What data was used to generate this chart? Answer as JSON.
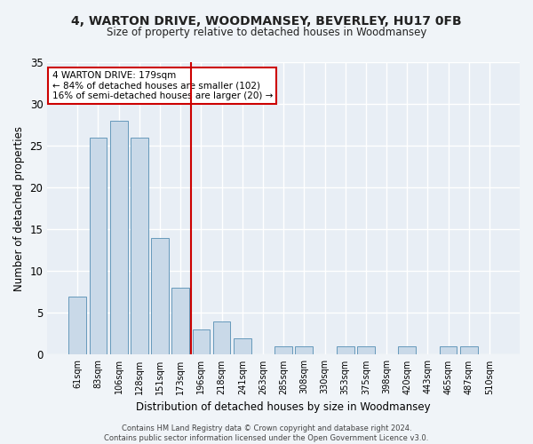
{
  "title1": "4, WARTON DRIVE, WOODMANSEY, BEVERLEY, HU17 0FB",
  "title2": "Size of property relative to detached houses in Woodmansey",
  "xlabel": "Distribution of detached houses by size in Woodmansey",
  "ylabel": "Number of detached properties",
  "categories": [
    "61sqm",
    "83sqm",
    "106sqm",
    "128sqm",
    "151sqm",
    "173sqm",
    "196sqm",
    "218sqm",
    "241sqm",
    "263sqm",
    "285sqm",
    "308sqm",
    "330sqm",
    "353sqm",
    "375sqm",
    "398sqm",
    "420sqm",
    "443sqm",
    "465sqm",
    "487sqm",
    "510sqm"
  ],
  "values": [
    7,
    26,
    28,
    26,
    14,
    8,
    3,
    4,
    2,
    0,
    1,
    1,
    0,
    1,
    1,
    0,
    1,
    0,
    1,
    1,
    0
  ],
  "bar_color": "#c9d9e8",
  "bar_edge_color": "#6699bb",
  "fig_background_color": "#f0f4f8",
  "ax_background_color": "#e8eef5",
  "grid_color": "#ffffff",
  "vline_x": 5.5,
  "vline_color": "#cc0000",
  "annotation_text": "4 WARTON DRIVE: 179sqm\n← 84% of detached houses are smaller (102)\n16% of semi-detached houses are larger (20) →",
  "annotation_box_color": "#ffffff",
  "annotation_box_edge": "#cc0000",
  "footer1": "Contains HM Land Registry data © Crown copyright and database right 2024.",
  "footer2": "Contains public sector information licensed under the Open Government Licence v3.0.",
  "ylim": [
    0,
    35
  ],
  "yticks": [
    0,
    5,
    10,
    15,
    20,
    25,
    30,
    35
  ]
}
